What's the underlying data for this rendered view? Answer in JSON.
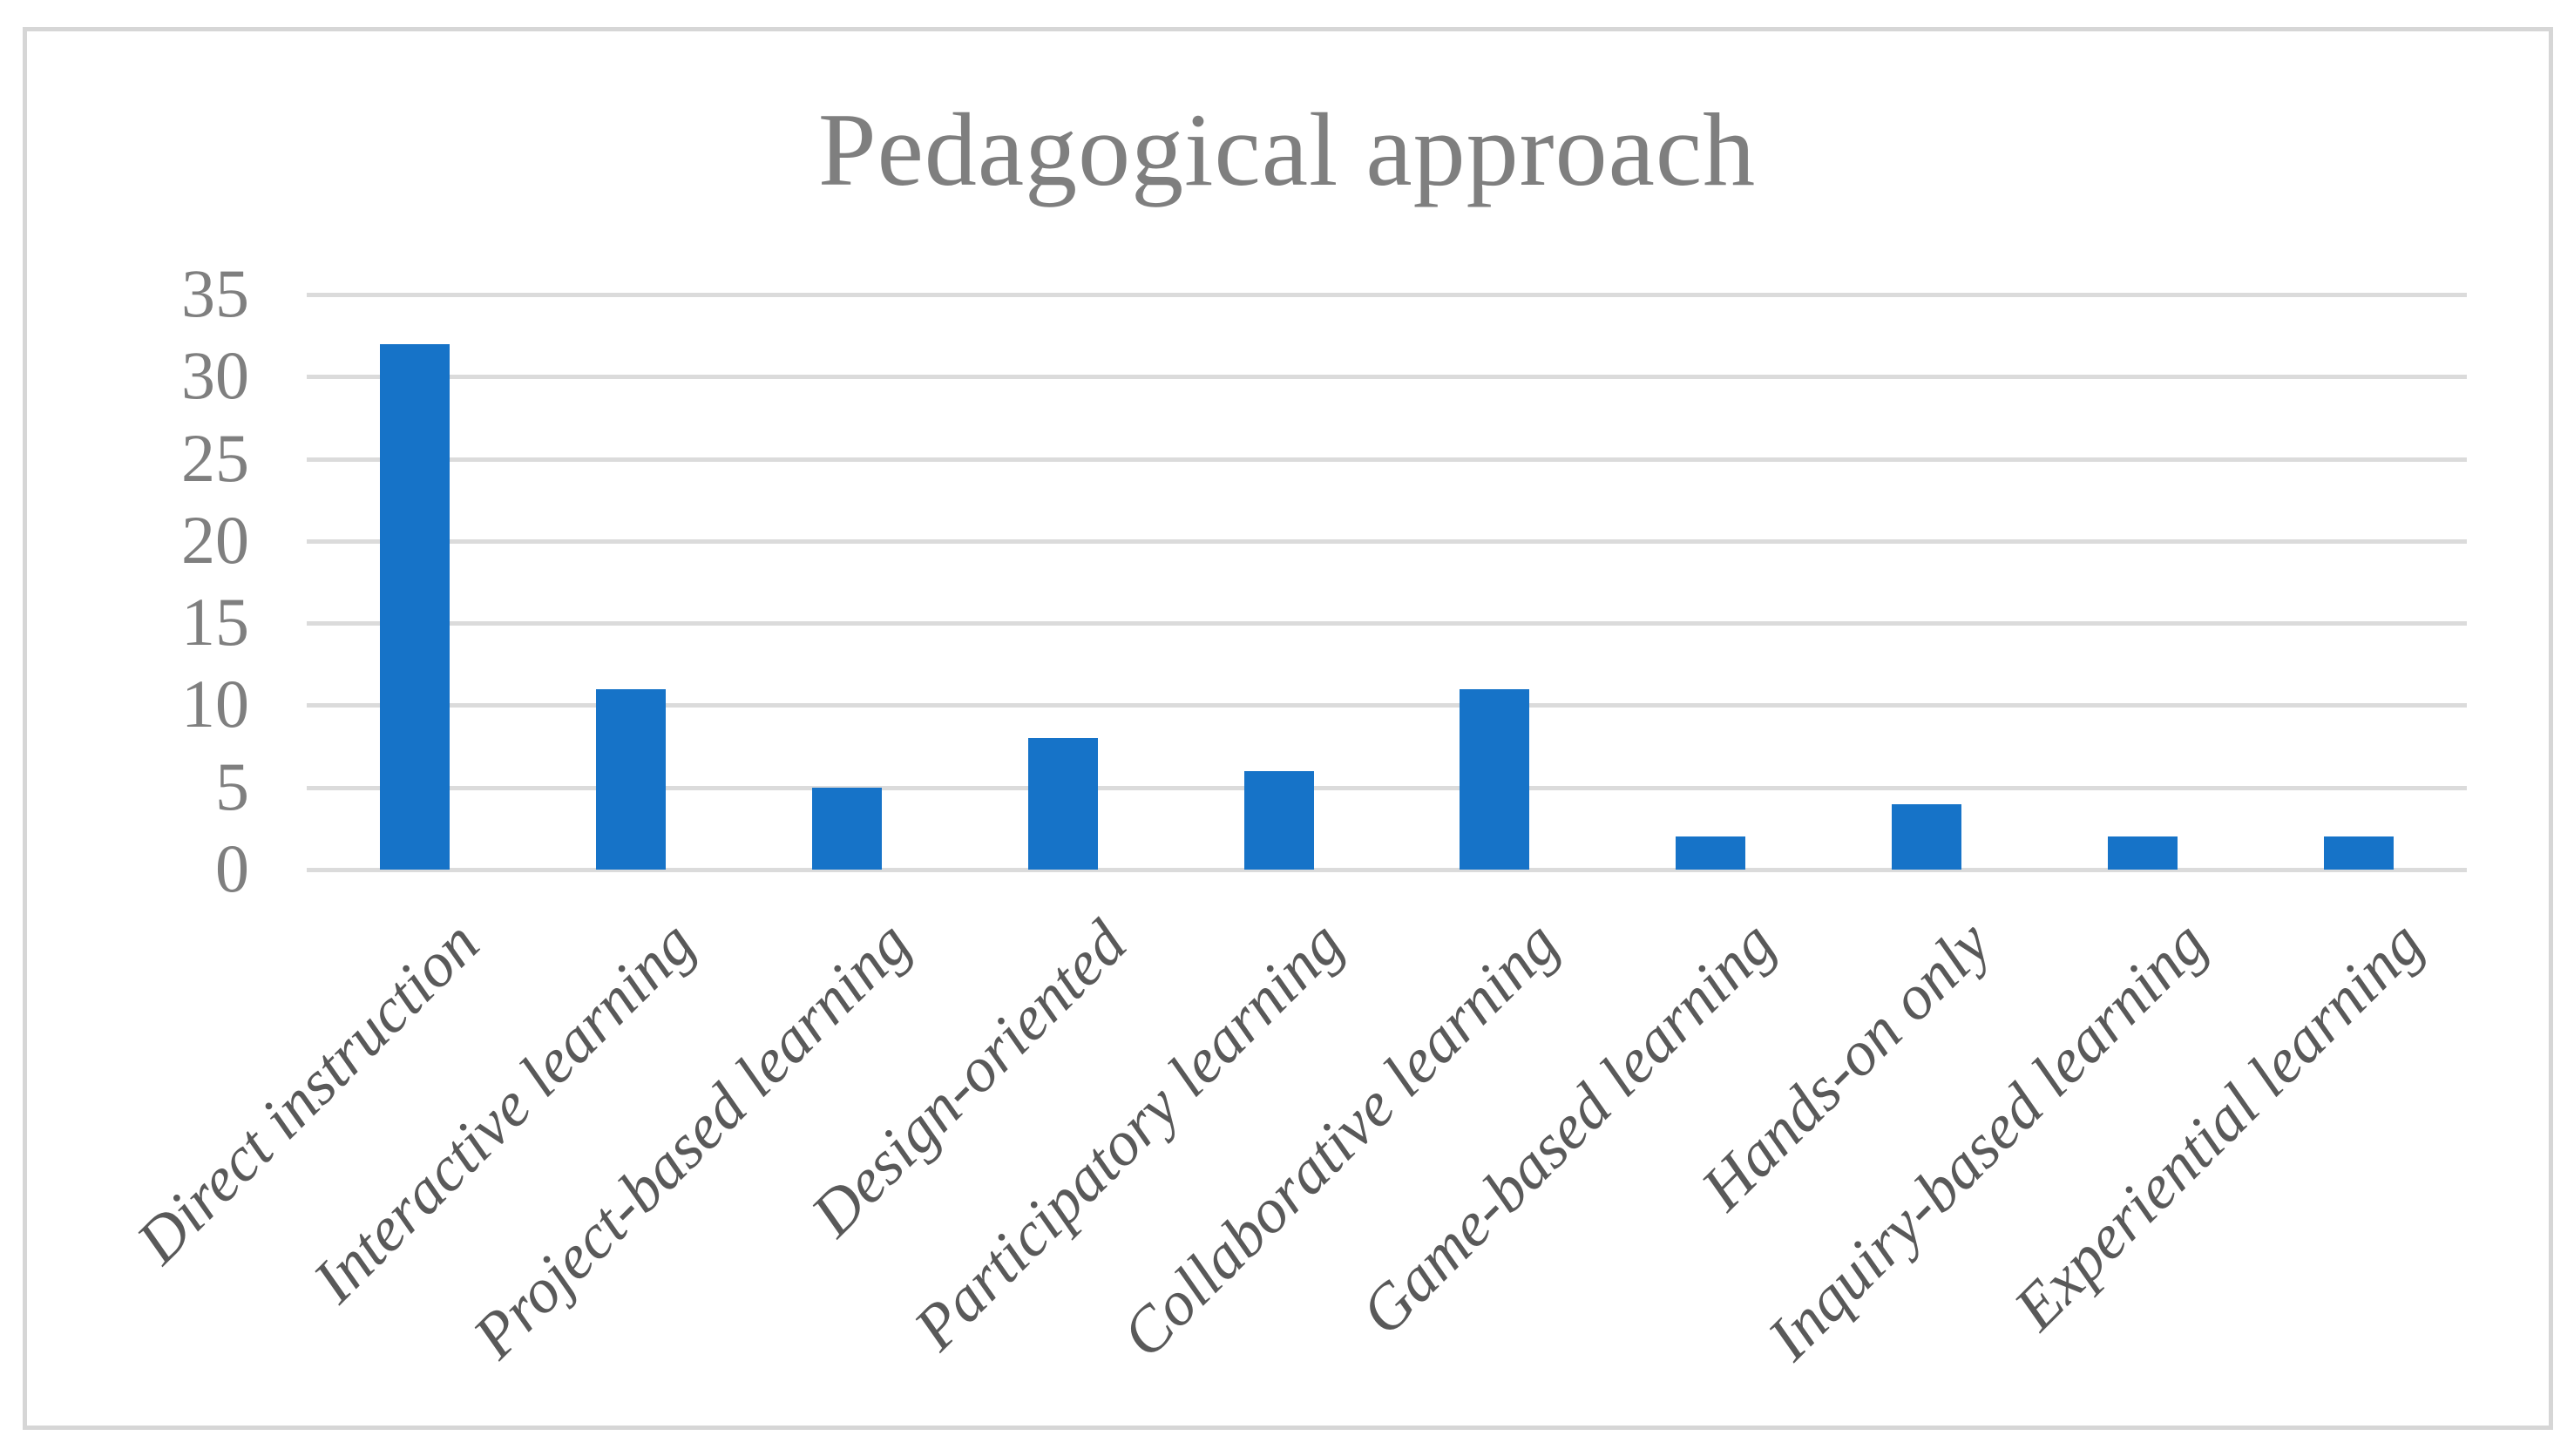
{
  "chart_data": {
    "type": "bar",
    "title": "Pedagogical approach",
    "categories": [
      "Direct instruction",
      "Interactive learning",
      "Project-based learning",
      "Design-oriented",
      "Participatory learning",
      "Collaborative learning",
      "Game-based learning",
      "Hands-on only",
      "Inquiry-based learning",
      "Experiential learning"
    ],
    "values": [
      32,
      11,
      5,
      8,
      6,
      11,
      2,
      4,
      2,
      2
    ],
    "xlabel": "",
    "ylabel": "",
    "ylim": [
      0,
      35
    ],
    "yticks": [
      0,
      5,
      10,
      15,
      20,
      25,
      30,
      35
    ],
    "grid": "horizontal",
    "legend": "none",
    "x_label_rotation_deg": 45,
    "colors": {
      "bar": "#1673C8",
      "gridline": "#DBDBDB",
      "frame": "#D6D6D6",
      "title": "#7F7F7F",
      "y_tick_text": "#7F7F7F",
      "x_tick_text": "#595959",
      "background": "#FFFFFF"
    }
  }
}
